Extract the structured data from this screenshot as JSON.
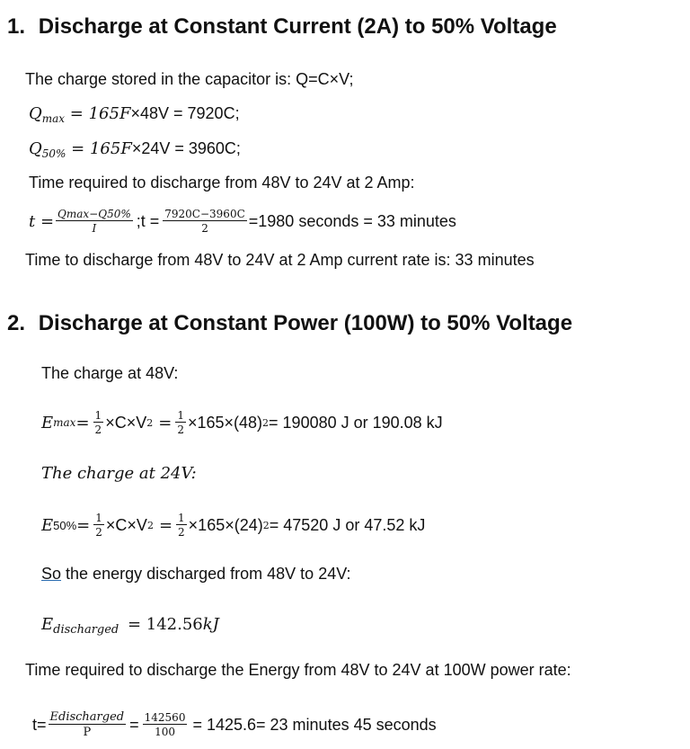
{
  "section1": {
    "number": "1.",
    "title": "Discharge at Constant Current (2A) to 50% Voltage",
    "intro": "The charge stored in the capacitor is: Q=C×V;",
    "qmax": {
      "sym": "Q",
      "sub": "max",
      "eq": " = ",
      "expr": "165F",
      "rest": "×48V = 7920C;"
    },
    "q50": {
      "sym": "Q",
      "sub": "50%",
      "eq": " = ",
      "expr": "165F",
      "rest": "×24V = 3960C;"
    },
    "time_req": "Time required to discharge from 48V to 24V at 2 Amp:",
    "formula": {
      "lhs": "t =",
      "num": "Qmax−Q50%",
      "den": "I",
      "sep": ";t =",
      "num2": "7920C−3960C",
      "den2": "2",
      "result": "=1980 seconds = 33 minutes"
    },
    "conclusion": "Time to discharge from 48V to 24V at 2 Amp current rate is: 33 minutes"
  },
  "section2": {
    "number": "2.",
    "title": "Discharge at Constant Power (100W) to 50% Voltage",
    "charge48": "The charge at 48V:",
    "emax": {
      "sym": "E",
      "sub": "max",
      "eq": " =",
      "half_num": "1",
      "half_den": "2",
      "cv": "×C×V",
      "sq": "2",
      "eq2": " =",
      "calc": "×165×(48)",
      "result": " = 190080 J or 190.08 kJ"
    },
    "charge24": "The charge at 24V:",
    "e50": {
      "sym": "E",
      "sub": "50%",
      "eq": " =",
      "half_num": "1",
      "half_den": "2",
      "cv": "×C×V",
      "sq": "2",
      "eq2": " =",
      "calc": "×165×(24)",
      "result": " = 47520 J or 47.52 kJ"
    },
    "so_word": "So",
    "so_rest": " the energy discharged from 48V to 24V:",
    "edis": {
      "sym": "E",
      "sub": "discharged",
      "eq": " = 142.56",
      "unit": "kJ"
    },
    "time_req": "Time required to discharge the Energy from 48V to 24V at 100W power rate:",
    "final": {
      "lhs": "t=",
      "num": "Edischarged",
      "den": "P",
      "eq": "=",
      "num2": "142560",
      "den2": "100",
      "result": "= 1425.6= 23 minutes 45 seconds"
    }
  }
}
